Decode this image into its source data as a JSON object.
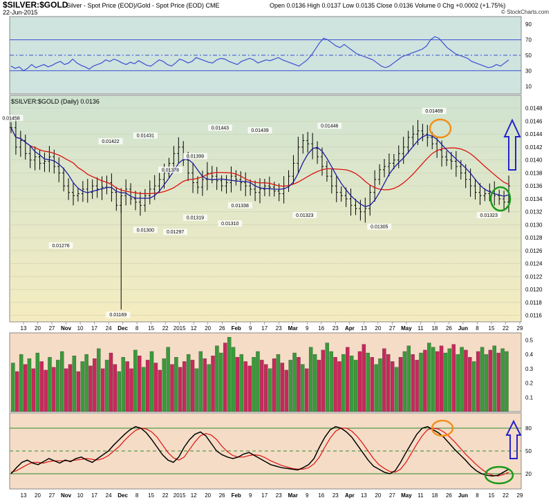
{
  "header": {
    "symbol": "$SILVER:$GOLD",
    "description": "Silver - Spot Price (EOD)/Gold - Spot Price (EOD)  CME",
    "date": "22-Jun-2015",
    "ohlc": "Open 0.0136  High 0.0137  Low 0.0135  Close 0.0136  Volume 0  Chg +0.0002 (+1.75%)",
    "brand": "© StockCharts.com"
  },
  "colors": {
    "rsi_bg": "#cfe3df",
    "price_bg_top": "#cfe3d0",
    "price_bg_bottom": "#f5ecc0",
    "vol_bg": "#f5dcc6",
    "stoch_bg": "#f5dcc6",
    "price_bar": "#000000",
    "ma_fast": "#1a1aa0",
    "ma_slow": "#dd1010",
    "rsi_line": "#3a4fd0",
    "vol_up": "#3a9a3a",
    "vol_down": "#c8285a",
    "annot_orange": "#f0901a",
    "annot_green": "#1a9a1a",
    "annot_arrow": "#2222cc"
  },
  "chart_data": [
    {
      "type": "line",
      "panel": "rsi",
      "ylim": [
        0,
        100
      ],
      "y_ticks": [
        "90",
        "70",
        "50",
        "30",
        "10"
      ],
      "levels": [
        70,
        50,
        30
      ],
      "values": [
        36,
        33,
        35,
        30,
        33,
        38,
        34,
        36,
        38,
        35,
        37,
        40,
        42,
        38,
        40,
        45,
        40,
        37,
        35,
        32,
        36,
        38,
        40,
        44,
        42,
        45,
        43,
        40,
        38,
        41,
        39,
        43,
        40,
        37,
        36,
        40,
        44,
        42,
        38,
        36,
        40,
        45,
        43,
        40,
        42,
        47,
        45,
        43,
        41,
        40,
        44,
        46,
        45,
        42,
        40,
        38,
        42,
        44,
        46,
        44,
        40,
        42,
        44,
        43,
        45,
        47,
        44,
        42,
        40,
        38,
        36,
        40,
        44,
        50,
        58,
        66,
        72,
        70,
        66,
        62,
        60,
        64,
        60,
        56,
        52,
        50,
        48,
        46,
        44,
        40,
        36,
        34,
        36,
        40,
        44,
        48,
        50,
        52,
        54,
        56,
        58,
        62,
        70,
        74,
        72,
        66,
        60,
        56,
        52,
        50,
        48,
        46,
        42,
        40,
        38,
        36,
        34,
        35,
        38,
        36,
        40,
        44
      ]
    },
    {
      "type": "bar",
      "panel": "price",
      "title": "$SILVER:$GOLD (Daily) 0.0136",
      "ylim": [
        0.0115,
        0.015
      ],
      "y_ticks": [
        "0.0148",
        "0.0146",
        "0.0144",
        "0.0142",
        "0.0140",
        "0.0138",
        "0.0136",
        "0.0134",
        "0.0132",
        "0.0130",
        "0.0128",
        "0.0126",
        "0.0124",
        "0.0122",
        "0.0120",
        "0.0118",
        "0.0116"
      ],
      "x_tick_labels": [
        "13",
        "20",
        "27",
        "Nov",
        "10",
        "17",
        "24",
        "Dec",
        "8",
        "15",
        "22",
        "2015",
        "12",
        "20",
        "26",
        "Feb",
        "9",
        "17",
        "23",
        "Mar",
        "9",
        "16",
        "23",
        "Apr",
        "13",
        "20",
        "27",
        "May",
        "11",
        "18",
        "26",
        "Jun",
        "8",
        "15",
        "22",
        "29"
      ],
      "close": [
        0.0145,
        0.0142,
        0.0143,
        0.0141,
        0.014,
        0.01405,
        0.01395,
        0.01398,
        0.01405,
        0.0139,
        0.0138,
        0.0136,
        0.0135,
        0.01345,
        0.01348,
        0.01355,
        0.0135,
        0.0136,
        0.01355,
        0.01358,
        0.01365,
        0.0135,
        0.0133,
        0.01345,
        0.01355,
        0.0134,
        0.01335,
        0.0133,
        0.01345,
        0.01355,
        0.0136,
        0.0137,
        0.0138,
        0.01395,
        0.0141,
        0.0142,
        0.014,
        0.0138,
        0.01365,
        0.01358,
        0.0137,
        0.0138,
        0.01375,
        0.01368,
        0.0136,
        0.01365,
        0.01375,
        0.0137,
        0.01365,
        0.0136,
        0.01355,
        0.0135,
        0.01355,
        0.0136,
        0.01358,
        0.01352,
        0.01348,
        0.0136,
        0.01375,
        0.01395,
        0.0142,
        0.0143,
        0.01425,
        0.01418,
        0.01405,
        0.0139,
        0.01375,
        0.0136,
        0.0135,
        0.01345,
        0.0134,
        0.0133,
        0.01325,
        0.0132,
        0.01325,
        0.0135,
        0.0137,
        0.01385,
        0.0139,
        0.01395,
        0.014,
        0.0141,
        0.0142,
        0.01435,
        0.0144,
        0.01445,
        0.0144,
        0.01435,
        0.01425,
        0.01415,
        0.01405,
        0.014,
        0.01398,
        0.0139,
        0.0138,
        0.0137,
        0.0136,
        0.0135,
        0.01345,
        0.01348,
        0.01352,
        0.01345,
        0.0134,
        0.01335,
        0.0136
      ],
      "annotations": [
        "0.01458",
        "0.01276",
        "0.01422",
        "0.01431",
        "0.01169",
        "0.01300",
        "0.01378",
        "0.01297",
        "0.01399",
        "0.01319",
        "0.01443",
        "0.01310",
        "0.01338",
        "0.01439",
        "0.01446",
        "0.01323",
        "0.01305",
        "0.01469",
        "0.01323"
      ],
      "series": [
        {
          "name": "",
          "role": "fast-ma"
        },
        {
          "name": "",
          "role": "slow-ma"
        }
      ]
    },
    {
      "type": "bar",
      "panel": "volume",
      "ylim": [
        0,
        0.55
      ],
      "y_ticks": [
        "0.5",
        "0.4",
        "0.3",
        "0.2",
        "0.1"
      ],
      "values": [
        0.34,
        0.28,
        0.4,
        0.33,
        0.37,
        0.3,
        0.41,
        0.35,
        0.29,
        0.38,
        0.31,
        0.36,
        0.42,
        0.3,
        0.33,
        0.39,
        0.28,
        0.35,
        0.4,
        0.32,
        0.37,
        0.44,
        0.3,
        0.36,
        0.41,
        0.33,
        0.28,
        0.38,
        0.35,
        0.3,
        0.43,
        0.39,
        0.31,
        0.36,
        0.42,
        0.34,
        0.29,
        0.37,
        0.45,
        0.33,
        0.38,
        0.31,
        0.35,
        0.4,
        0.36,
        0.3,
        0.42,
        0.37,
        0.33,
        0.39,
        0.46,
        0.41,
        0.48,
        0.52,
        0.45,
        0.38,
        0.4,
        0.35,
        0.32,
        0.38,
        0.42,
        0.36,
        0.33,
        0.3,
        0.37,
        0.4,
        0.34,
        0.29,
        0.36,
        0.41,
        0.38,
        0.33,
        0.3,
        0.45,
        0.4,
        0.36,
        0.43,
        0.48,
        0.42,
        0.38,
        0.35,
        0.4,
        0.45,
        0.39,
        0.36,
        0.42,
        0.47,
        0.41,
        0.38,
        0.33,
        0.37,
        0.44,
        0.4,
        0.35,
        0.31,
        0.38,
        0.42,
        0.46,
        0.4,
        0.36,
        0.41,
        0.43,
        0.48,
        0.45,
        0.42,
        0.46,
        0.41,
        0.44,
        0.47,
        0.4,
        0.45,
        0.43,
        0.38,
        0.35,
        0.42,
        0.45,
        0.4,
        0.43,
        0.46,
        0.41,
        0.44,
        0.42
      ],
      "up": [
        1,
        0,
        1,
        0,
        1,
        0,
        1,
        0,
        0,
        1,
        0,
        1,
        1,
        0,
        0,
        1,
        0,
        1,
        1,
        0,
        0,
        1,
        0,
        1,
        0,
        0,
        1,
        1,
        0,
        0,
        1,
        0,
        1,
        0,
        1,
        0,
        0,
        1,
        1,
        0,
        1,
        0,
        0,
        1,
        0,
        1,
        1,
        0,
        1,
        0,
        1,
        1,
        0,
        1,
        1,
        0,
        1,
        0,
        0,
        1,
        1,
        0,
        0,
        1,
        0,
        1,
        0,
        0,
        1,
        1,
        0,
        1,
        0,
        1,
        1,
        0,
        0,
        1,
        1,
        0,
        0,
        1,
        0,
        1,
        1,
        0,
        0,
        1,
        0,
        1,
        1,
        0,
        0,
        0,
        1,
        0,
        1,
        1,
        0,
        0,
        1,
        0,
        1,
        1,
        0,
        0,
        1,
        1,
        0,
        1,
        1,
        0,
        0,
        1,
        0,
        1,
        1,
        0,
        1,
        0,
        1,
        1
      ]
    },
    {
      "type": "line",
      "panel": "stochastic",
      "ylim": [
        0,
        100
      ],
      "y_ticks": [
        "80",
        "50",
        "20"
      ],
      "levels": [
        80,
        50,
        20
      ],
      "series": [
        {
          "name": "",
          "values": [
            20,
            28,
            35,
            38,
            34,
            32,
            36,
            40,
            37,
            34,
            38,
            36,
            40,
            42,
            38,
            35,
            40,
            45,
            50,
            58,
            65,
            72,
            78,
            82,
            80,
            74,
            65,
            55,
            45,
            38,
            35,
            42,
            55,
            65,
            72,
            75,
            70,
            60,
            50,
            45,
            42,
            40,
            42,
            46,
            48,
            44,
            40,
            36,
            32,
            30,
            28,
            27,
            26,
            25,
            28,
            32,
            40,
            55,
            68,
            78,
            82,
            80,
            75,
            68,
            58,
            48,
            38,
            30,
            26,
            22,
            20,
            24,
            35,
            48,
            60,
            72,
            80,
            82,
            78,
            74,
            68,
            60,
            52,
            45,
            38,
            30,
            24,
            20,
            18,
            17,
            18,
            22,
            26
          ]
        },
        {
          "name": "",
          "values": [
            22,
            24,
            28,
            32,
            35,
            35,
            34,
            36,
            37,
            37,
            37,
            37,
            38,
            39,
            40,
            39,
            38,
            40,
            44,
            50,
            56,
            64,
            71,
            77,
            80,
            79,
            75,
            68,
            58,
            48,
            41,
            38,
            42,
            52,
            62,
            70,
            73,
            71,
            65,
            56,
            49,
            44,
            42,
            42,
            44,
            45,
            44,
            41,
            37,
            34,
            31,
            29,
            27,
            26,
            26,
            28,
            33,
            42,
            55,
            67,
            76,
            80,
            80,
            76,
            69,
            60,
            50,
            40,
            32,
            27,
            23,
            22,
            26,
            35,
            47,
            59,
            70,
            78,
            80,
            79,
            75,
            69,
            62,
            54,
            46,
            39,
            32,
            26,
            21,
            18,
            17,
            19,
            22
          ]
        }
      ]
    }
  ]
}
